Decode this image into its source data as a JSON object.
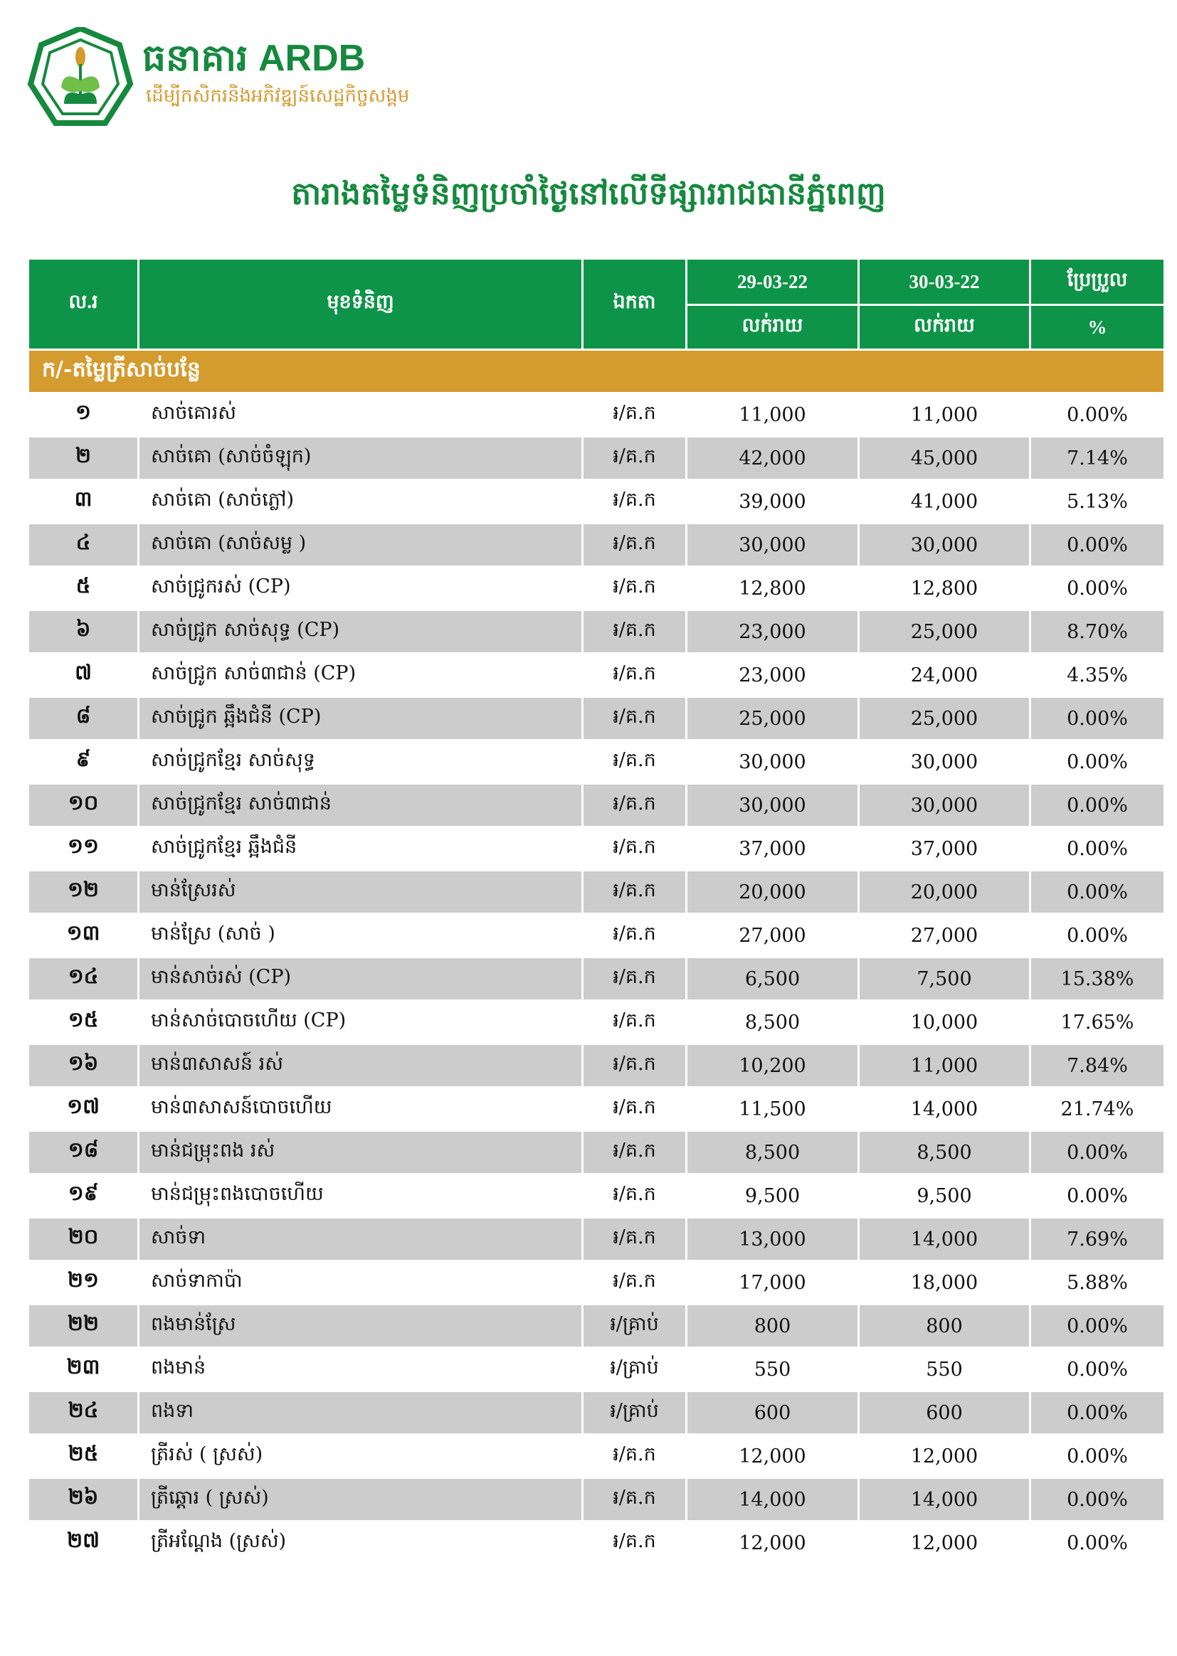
{
  "logo": {
    "brand": "ធនាគារ ARDB",
    "tagline": "ដើម្បីកសិករនិងអភិវឌ្ឍន៍សេដ្ឋកិច្ចសង្គម",
    "colors": {
      "green": "#16893f",
      "gold": "#d39a2f"
    }
  },
  "title": "តារាងតម្លៃទំនិញប្រចាំថ្ងៃនៅលើទីផ្សាររាជធានីភ្នំពេញ",
  "header": {
    "no": "ល.រ",
    "item": "មុខទំនិញ",
    "unit": "ឯកតា",
    "date1": "29-03-22",
    "date2": "30-03-22",
    "change": "ប្រែប្រួល",
    "retail1": "លក់រាយ",
    "retail2": "លក់រាយ",
    "percent": "%"
  },
  "section": "ក/-តម្លៃត្រីសាច់បន្លែ",
  "rows": [
    {
      "no": "១",
      "name": "សាច់គោរស់",
      "unit": "៛/គ.ក",
      "p1": "11,000",
      "p2": "11,000",
      "chg": "0.00%"
    },
    {
      "no": "២",
      "name": "សាច់គោ (សាច់ចំឡុក)",
      "unit": "៛/គ.ក",
      "p1": "42,000",
      "p2": "45,000",
      "chg": "7.14%"
    },
    {
      "no": "៣",
      "name": "សាច់គោ (សាច់ភ្លៅ)",
      "unit": "៛/គ.ក",
      "p1": "39,000",
      "p2": "41,000",
      "chg": "5.13%"
    },
    {
      "no": "៤",
      "name": "សាច់គោ (សាច់សម្ល )",
      "unit": "៛/គ.ក",
      "p1": "30,000",
      "p2": "30,000",
      "chg": "0.00%"
    },
    {
      "no": "៥",
      "name": "សាច់ជ្រូករស់ (CP)",
      "unit": "៛/គ.ក",
      "p1": "12,800",
      "p2": "12,800",
      "chg": "0.00%"
    },
    {
      "no": "៦",
      "name": "សាច់ជ្រូក សាច់សុទ្ធ (CP)",
      "unit": "៛/គ.ក",
      "p1": "23,000",
      "p2": "25,000",
      "chg": "8.70%"
    },
    {
      "no": "៧",
      "name": "សាច់ជ្រូក សាច់៣ជាន់ (CP)",
      "unit": "៛/គ.ក",
      "p1": "23,000",
      "p2": "24,000",
      "chg": "4.35%"
    },
    {
      "no": "៨",
      "name": "សាច់ជ្រូក ឆ្អឹងជំនី (CP)",
      "unit": "៛/គ.ក",
      "p1": "25,000",
      "p2": "25,000",
      "chg": "0.00%"
    },
    {
      "no": "៩",
      "name": "សាច់ជ្រូកខ្មែរ សាច់សុទ្ធ",
      "unit": "៛/គ.ក",
      "p1": "30,000",
      "p2": "30,000",
      "chg": "0.00%"
    },
    {
      "no": "១០",
      "name": "សាច់ជ្រូកខ្មែរ សាច់៣ជាន់",
      "unit": "៛/គ.ក",
      "p1": "30,000",
      "p2": "30,000",
      "chg": "0.00%"
    },
    {
      "no": "១១",
      "name": "សាច់ជ្រូកខ្មែរ ឆ្អឹងជំនី",
      "unit": "៛/គ.ក",
      "p1": "37,000",
      "p2": "37,000",
      "chg": "0.00%"
    },
    {
      "no": "១២",
      "name": "មាន់ស្រែរស់",
      "unit": "៛/គ.ក",
      "p1": "20,000",
      "p2": "20,000",
      "chg": "0.00%"
    },
    {
      "no": "១៣",
      "name": "មាន់ស្រែ (សាច់ )",
      "unit": "៛/គ.ក",
      "p1": "27,000",
      "p2": "27,000",
      "chg": "0.00%"
    },
    {
      "no": "១៤",
      "name": "មាន់សាច់រស់ (CP)",
      "unit": "៛/គ.ក",
      "p1": "6,500",
      "p2": "7,500",
      "chg": "15.38%"
    },
    {
      "no": "១៥",
      "name": "មាន់សាច់បោចហើយ (CP)",
      "unit": "៛/គ.ក",
      "p1": "8,500",
      "p2": "10,000",
      "chg": "17.65%"
    },
    {
      "no": "១៦",
      "name": "មាន់៣សាសន៍ រស់",
      "unit": "៛/គ.ក",
      "p1": "10,200",
      "p2": "11,000",
      "chg": "7.84%"
    },
    {
      "no": "១៧",
      "name": "មាន់៣សាសន៍បោចហើយ",
      "unit": "៛/គ.ក",
      "p1": "11,500",
      "p2": "14,000",
      "chg": "21.74%"
    },
    {
      "no": "១៨",
      "name": "មាន់ជម្រុះពង រស់",
      "unit": "៛/គ.ក",
      "p1": "8,500",
      "p2": "8,500",
      "chg": "0.00%"
    },
    {
      "no": "១៩",
      "name": "មាន់ជម្រុះពងបោចហើយ",
      "unit": "៛/គ.ក",
      "p1": "9,500",
      "p2": "9,500",
      "chg": "0.00%"
    },
    {
      "no": "២០",
      "name": "សាច់ទា",
      "unit": "៛/គ.ក",
      "p1": "13,000",
      "p2": "14,000",
      "chg": "7.69%"
    },
    {
      "no": "២១",
      "name": "សាច់ទាកាប៉ា",
      "unit": "៛/គ.ក",
      "p1": "17,000",
      "p2": "18,000",
      "chg": "5.88%"
    },
    {
      "no": "២២",
      "name": "ពងមាន់ស្រែ",
      "unit": "៛/គ្រាប់",
      "p1": "800",
      "p2": "800",
      "chg": "0.00%"
    },
    {
      "no": "២៣",
      "name": "ពងមាន់",
      "unit": "៛/គ្រាប់",
      "p1": "550",
      "p2": "550",
      "chg": "0.00%"
    },
    {
      "no": "២៤",
      "name": "ពងទា",
      "unit": "៛/គ្រាប់",
      "p1": "600",
      "p2": "600",
      "chg": "0.00%"
    },
    {
      "no": "២៥",
      "name": "ត្រីរស់ ( ស្រស់)",
      "unit": "៛/គ.ក",
      "p1": "12,000",
      "p2": "12,000",
      "chg": "0.00%"
    },
    {
      "no": "២៦",
      "name": "ត្រីឆ្តោរ ( ស្រស់)",
      "unit": "៛/គ.ក",
      "p1": "14,000",
      "p2": "14,000",
      "chg": "0.00%"
    },
    {
      "no": "២៧",
      "name": "ត្រីអណ្តែង (ស្រស់)",
      "unit": "៛/គ.ក",
      "p1": "12,000",
      "p2": "12,000",
      "chg": "0.00%"
    }
  ]
}
